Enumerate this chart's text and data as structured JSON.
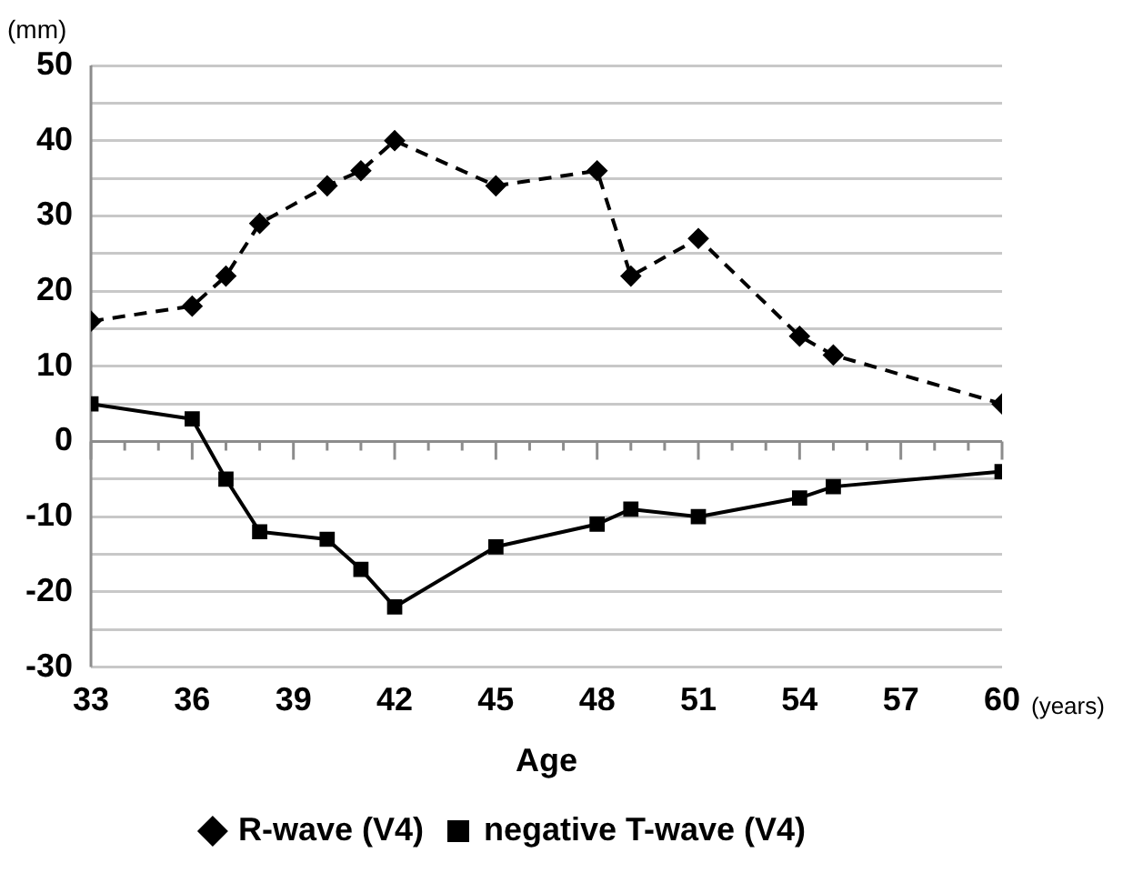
{
  "chart_data": {
    "type": "line",
    "xlabel": "Age",
    "ylabel": "(mm)",
    "annotations": [
      "(years)"
    ],
    "xlim": [
      33,
      60
    ],
    "xticks": [
      33,
      {
        "value": 34,
        "label": null
      },
      {
        "value": 35,
        "label": null
      },
      36,
      {
        "value": 37,
        "label": null
      },
      {
        "value": 38,
        "label": null
      },
      39,
      {
        "value": 40,
        "label": null
      },
      {
        "value": 41,
        "label": null
      },
      42,
      {
        "value": 43,
        "label": null
      },
      {
        "value": 44,
        "label": null
      },
      45,
      {
        "value": 46,
        "label": null
      },
      {
        "value": 47,
        "label": null
      },
      48,
      {
        "value": 49,
        "label": null
      },
      {
        "value": 50,
        "label": null
      },
      51,
      {
        "value": 52,
        "label": null
      },
      {
        "value": 53,
        "label": null
      },
      54,
      {
        "value": 55,
        "label": null
      },
      {
        "value": 56,
        "label": null
      },
      57,
      {
        "value": 58,
        "label": null
      },
      {
        "value": 59,
        "label": null
      },
      60
    ],
    "ylim": [
      -30,
      50
    ],
    "yticks": [
      -30,
      {
        "value": -25,
        "label": null
      },
      -20,
      {
        "value": -15,
        "label": null
      },
      -10,
      {
        "value": -5,
        "label": null
      },
      0,
      {
        "value": 5,
        "label": null
      },
      10,
      {
        "value": 15,
        "label": null
      },
      20,
      {
        "value": 25,
        "label": null
      },
      30,
      {
        "value": 35,
        "label": null
      },
      40,
      {
        "value": 45,
        "label": null
      },
      50
    ],
    "grid": "y",
    "legend": "bottom",
    "series": [
      {
        "name": "R-wave (V4)",
        "color": "#000000",
        "marker": "diamond",
        "line_style": "dashed",
        "x": [
          33,
          36,
          37,
          38,
          40,
          41,
          42,
          45,
          48,
          49,
          51,
          54,
          55,
          60
        ],
        "values": [
          16,
          18,
          22,
          29,
          34,
          36,
          40,
          34,
          36,
          22,
          27,
          14,
          11.5,
          5
        ]
      },
      {
        "name": "negative T-wave (V4)",
        "color": "#000000",
        "marker": "square",
        "line_style": "solid",
        "x": [
          33,
          36,
          37,
          38,
          40,
          41,
          42,
          45,
          48,
          49,
          51,
          54,
          55,
          60
        ],
        "values": [
          5,
          3,
          -5,
          -12,
          -13,
          -17,
          -22,
          -14,
          -11,
          -9,
          -10,
          -7.5,
          -6,
          -4
        ]
      }
    ]
  }
}
